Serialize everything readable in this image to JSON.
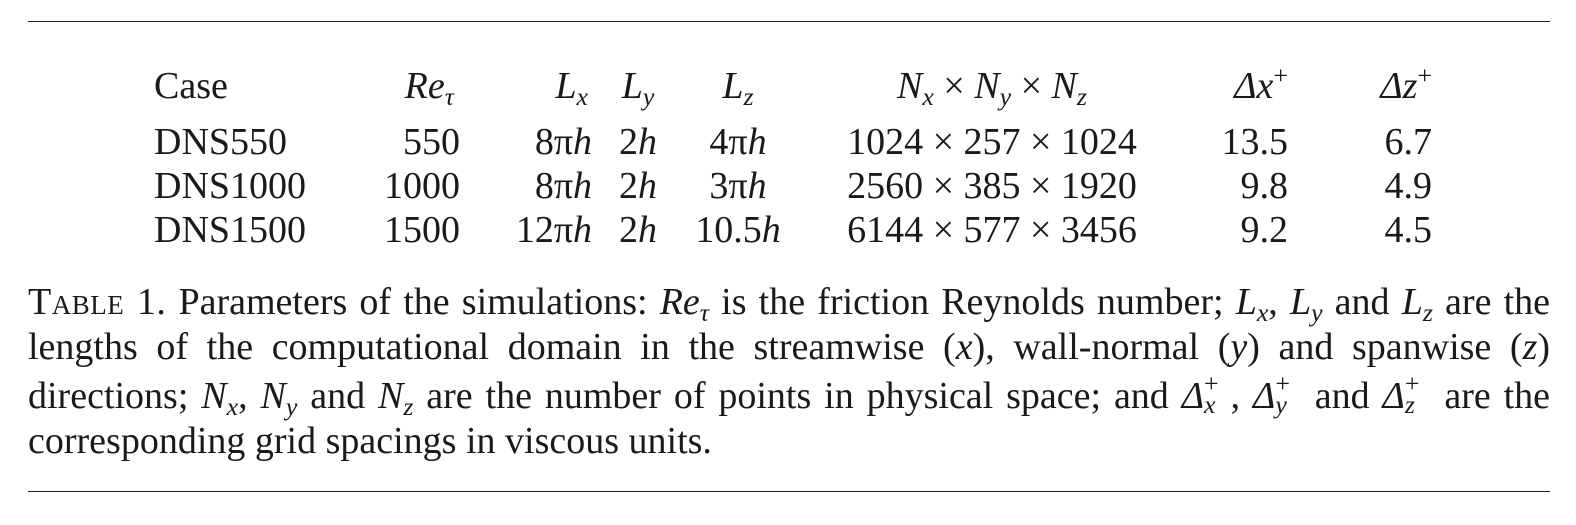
{
  "table": {
    "headers": [
      "Case",
      "Re",
      "τ",
      "L",
      "x",
      "L",
      "y",
      "L",
      "z",
      "N",
      "x",
      "×",
      "N",
      "y",
      "×",
      "N",
      "z",
      "Δx",
      "+",
      "Δz",
      "+"
    ],
    "rows": [
      {
        "case": "DNS550",
        "re": "550",
        "lx_num": "8π",
        "lx_h": "h",
        "ly_num": "2",
        "ly_h": "h",
        "lz_num": "4π",
        "lz_h": "h",
        "grid": "1024 × 257 × 1024",
        "dx": "13.5",
        "dz": "6.7"
      },
      {
        "case": "DNS1000",
        "re": "1000",
        "lx_num": "8π",
        "lx_h": "h",
        "ly_num": "2",
        "ly_h": "h",
        "lz_num": "3π",
        "lz_h": "h",
        "grid": "2560 × 385 × 1920",
        "dx": "9.8",
        "dz": "4.9"
      },
      {
        "case": "DNS1500",
        "re": "1500",
        "lx_num": "12π",
        "lx_h": "h",
        "ly_num": "2",
        "ly_h": "h",
        "lz_num": "10.5",
        "lz_h": "h",
        "grid": "6144 × 577 × 3456",
        "dx": "9.2",
        "dz": "4.5"
      }
    ]
  },
  "caption": {
    "label": "Table 1.",
    "t1": " Parameters of the simulations: ",
    "re": "Re",
    "tau": "τ",
    "t2": " is the friction Reynolds number; ",
    "L": "L",
    "x": "x",
    "y": "y",
    "z": "z",
    "comma": ", ",
    "and": " and ",
    "t3": " are the lengths of the computational domain in the streamwise (",
    "t4": "), wall-normal (",
    "t5": ") and spanwise (",
    "t6": ") directions; ",
    "N": "N",
    "t7": " are the number of points in physical space; and ",
    "delta": "Δ",
    "plus": "+",
    "t8": " are the corresponding grid spacings in viscous units."
  }
}
